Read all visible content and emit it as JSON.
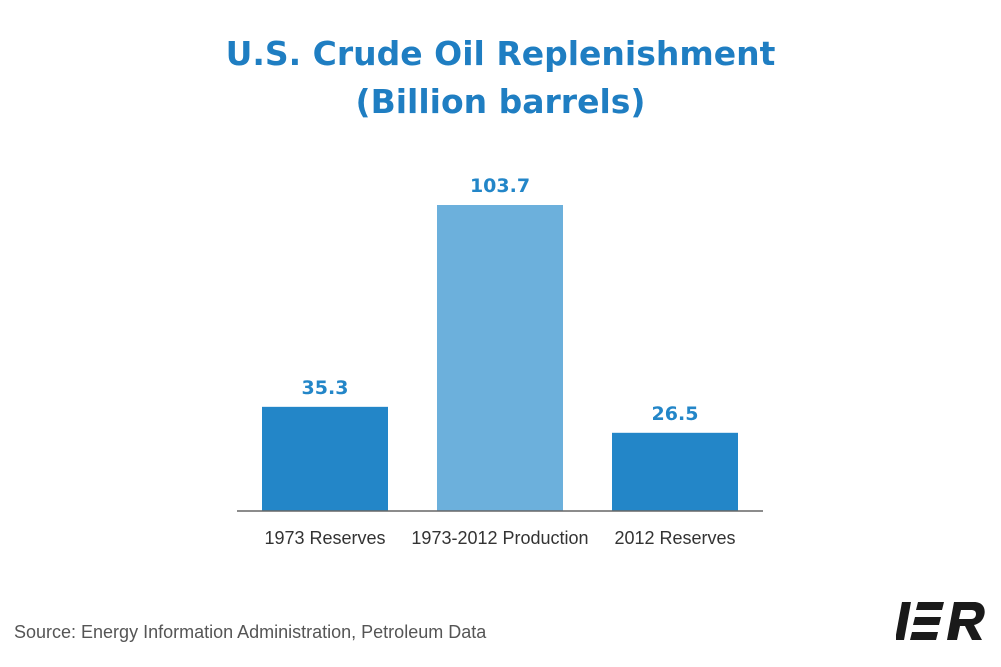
{
  "chart_data": {
    "type": "bar",
    "title": "U.S. Crude Oil Replenishment",
    "subtitle": "(Billion barrels)",
    "categories": [
      "1973 Reserves",
      "1973-2012 Production",
      "2012 Reserves"
    ],
    "values": [
      35.3,
      103.7,
      26.5
    ],
    "data_labels": [
      "35.3",
      "103.7",
      "26.5"
    ],
    "bar_colors": [
      "#2386c8",
      "#6cb0dc",
      "#2386c8"
    ],
    "label_color": "#2386c8",
    "ylim": [
      0,
      103.7
    ],
    "grid": false,
    "legend": "none"
  },
  "footer": {
    "source": "Source: Energy Information Administration, Petroleum Data",
    "logo_text": "IER"
  }
}
